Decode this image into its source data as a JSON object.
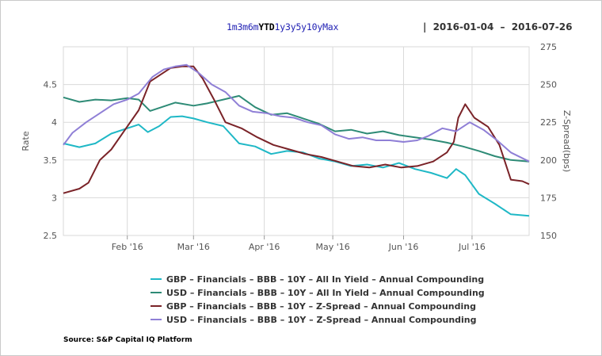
{
  "toolbar": {
    "ranges": [
      "1m",
      "3m",
      "6m",
      "YTD",
      "1y",
      "3y",
      "5y",
      "10y",
      "Max"
    ],
    "active_range": "YTD",
    "separator": "|",
    "date_from": "2016-01-04",
    "date_dash": "–",
    "date_to": "2016-07-26"
  },
  "source": "Source: S&P Capital IQ Platform",
  "colors": {
    "gbp_yield": "#1fb8c6",
    "usd_yield": "#2e8b76",
    "gbp_spread": "#7a2328",
    "usd_spread": "#8f7fd6",
    "grid": "#d9d9d9"
  },
  "chart_data": {
    "type": "line",
    "x_type": "date",
    "x_ticks": [
      {
        "date": "2016-02-01",
        "label": "Feb '16"
      },
      {
        "date": "2016-03-01",
        "label": "Mar '16"
      },
      {
        "date": "2016-04-01",
        "label": "Apr '16"
      },
      {
        "date": "2016-05-01",
        "label": "May '16"
      },
      {
        "date": "2016-06-01",
        "label": "Jun '16"
      },
      {
        "date": "2016-07-01",
        "label": "Jul '16"
      }
    ],
    "xlim": [
      "2016-01-04",
      "2016-07-26"
    ],
    "left_axis": {
      "label": "Rate",
      "ylim": [
        2.5,
        5.0
      ],
      "ticks": [
        "2.5",
        "3",
        "3.5",
        "4",
        "4.5"
      ]
    },
    "right_axis": {
      "label": "Z-Spread(bps)",
      "ylim": [
        150,
        275
      ],
      "ticks": [
        "150",
        "175",
        "200",
        "225",
        "250",
        "275"
      ]
    },
    "grid": true,
    "legend_position": "bottom",
    "series": [
      {
        "name": "GBP – Financials – BBB – 10Y – All In Yield – Annual Compounding",
        "axis": "left",
        "color_key": "gbp_yield",
        "points": [
          [
            "2016-01-04",
            3.72
          ],
          [
            "2016-01-11",
            3.67
          ],
          [
            "2016-01-18",
            3.72
          ],
          [
            "2016-01-25",
            3.85
          ],
          [
            "2016-02-01",
            3.92
          ],
          [
            "2016-02-06",
            3.97
          ],
          [
            "2016-02-10",
            3.87
          ],
          [
            "2016-02-15",
            3.95
          ],
          [
            "2016-02-20",
            4.07
          ],
          [
            "2016-02-25",
            4.08
          ],
          [
            "2016-03-01",
            4.05
          ],
          [
            "2016-03-07",
            4.0
          ],
          [
            "2016-03-14",
            3.95
          ],
          [
            "2016-03-21",
            3.72
          ],
          [
            "2016-03-28",
            3.68
          ],
          [
            "2016-04-04",
            3.58
          ],
          [
            "2016-04-11",
            3.62
          ],
          [
            "2016-04-18",
            3.6
          ],
          [
            "2016-04-25",
            3.52
          ],
          [
            "2016-05-02",
            3.48
          ],
          [
            "2016-05-09",
            3.42
          ],
          [
            "2016-05-16",
            3.44
          ],
          [
            "2016-05-23",
            3.4
          ],
          [
            "2016-05-30",
            3.46
          ],
          [
            "2016-06-06",
            3.38
          ],
          [
            "2016-06-13",
            3.33
          ],
          [
            "2016-06-20",
            3.26
          ],
          [
            "2016-06-24",
            3.38
          ],
          [
            "2016-06-28",
            3.3
          ],
          [
            "2016-07-04",
            3.05
          ],
          [
            "2016-07-11",
            2.92
          ],
          [
            "2016-07-18",
            2.78
          ],
          [
            "2016-07-26",
            2.76
          ]
        ]
      },
      {
        "name": "USD – Financials – BBB – 10Y – All In Yield – Annual Compounding",
        "axis": "left",
        "color_key": "usd_yield",
        "points": [
          [
            "2016-01-04",
            4.33
          ],
          [
            "2016-01-11",
            4.27
          ],
          [
            "2016-01-18",
            4.3
          ],
          [
            "2016-01-25",
            4.29
          ],
          [
            "2016-02-01",
            4.32
          ],
          [
            "2016-02-06",
            4.3
          ],
          [
            "2016-02-11",
            4.15
          ],
          [
            "2016-02-16",
            4.2
          ],
          [
            "2016-02-22",
            4.26
          ],
          [
            "2016-03-01",
            4.22
          ],
          [
            "2016-03-07",
            4.25
          ],
          [
            "2016-03-14",
            4.3
          ],
          [
            "2016-03-21",
            4.35
          ],
          [
            "2016-03-28",
            4.2
          ],
          [
            "2016-04-04",
            4.1
          ],
          [
            "2016-04-11",
            4.12
          ],
          [
            "2016-04-18",
            4.05
          ],
          [
            "2016-04-25",
            3.98
          ],
          [
            "2016-05-02",
            3.88
          ],
          [
            "2016-05-09",
            3.9
          ],
          [
            "2016-05-16",
            3.85
          ],
          [
            "2016-05-23",
            3.88
          ],
          [
            "2016-05-30",
            3.83
          ],
          [
            "2016-06-06",
            3.8
          ],
          [
            "2016-06-13",
            3.77
          ],
          [
            "2016-06-20",
            3.73
          ],
          [
            "2016-06-27",
            3.68
          ],
          [
            "2016-07-04",
            3.62
          ],
          [
            "2016-07-11",
            3.55
          ],
          [
            "2016-07-18",
            3.5
          ],
          [
            "2016-07-26",
            3.48
          ]
        ]
      },
      {
        "name": "GBP – Financials – BBB – 10Y – Z-Spread – Annual Compounding",
        "axis": "right",
        "color_key": "gbp_spread",
        "points": [
          [
            "2016-01-04",
            178
          ],
          [
            "2016-01-11",
            181
          ],
          [
            "2016-01-15",
            185
          ],
          [
            "2016-01-20",
            200
          ],
          [
            "2016-01-25",
            207
          ],
          [
            "2016-01-31",
            220
          ],
          [
            "2016-02-06",
            233
          ],
          [
            "2016-02-11",
            252
          ],
          [
            "2016-02-16",
            257
          ],
          [
            "2016-02-20",
            261
          ],
          [
            "2016-02-25",
            262
          ],
          [
            "2016-03-01",
            262
          ],
          [
            "2016-03-05",
            254
          ],
          [
            "2016-03-10",
            240
          ],
          [
            "2016-03-15",
            225
          ],
          [
            "2016-03-22",
            221
          ],
          [
            "2016-03-29",
            215
          ],
          [
            "2016-04-05",
            210
          ],
          [
            "2016-04-12",
            207
          ],
          [
            "2016-04-19",
            204
          ],
          [
            "2016-04-26",
            202
          ],
          [
            "2016-05-03",
            199
          ],
          [
            "2016-05-10",
            196
          ],
          [
            "2016-05-17",
            195
          ],
          [
            "2016-05-24",
            197
          ],
          [
            "2016-05-31",
            195
          ],
          [
            "2016-06-07",
            196
          ],
          [
            "2016-06-14",
            199
          ],
          [
            "2016-06-20",
            205
          ],
          [
            "2016-06-23",
            212
          ],
          [
            "2016-06-25",
            228
          ],
          [
            "2016-06-28",
            237
          ],
          [
            "2016-07-02",
            228
          ],
          [
            "2016-07-08",
            222
          ],
          [
            "2016-07-13",
            210
          ],
          [
            "2016-07-18",
            187
          ],
          [
            "2016-07-23",
            186
          ],
          [
            "2016-07-26",
            184
          ]
        ]
      },
      {
        "name": "USD – Financials – BBB – 10Y – Z-Spread – Annual Compounding",
        "axis": "right",
        "color_key": "usd_spread",
        "points": [
          [
            "2016-01-04",
            210
          ],
          [
            "2016-01-08",
            218
          ],
          [
            "2016-01-14",
            225
          ],
          [
            "2016-01-20",
            231
          ],
          [
            "2016-01-26",
            237
          ],
          [
            "2016-02-01",
            240
          ],
          [
            "2016-02-06",
            244
          ],
          [
            "2016-02-12",
            255
          ],
          [
            "2016-02-17",
            260
          ],
          [
            "2016-02-22",
            262
          ],
          [
            "2016-02-27",
            263
          ],
          [
            "2016-03-03",
            258
          ],
          [
            "2016-03-09",
            250
          ],
          [
            "2016-03-15",
            245
          ],
          [
            "2016-03-21",
            236
          ],
          [
            "2016-03-27",
            232
          ],
          [
            "2016-04-02",
            231
          ],
          [
            "2016-04-08",
            229
          ],
          [
            "2016-04-14",
            228
          ],
          [
            "2016-04-20",
            225
          ],
          [
            "2016-04-26",
            223
          ],
          [
            "2016-05-02",
            217
          ],
          [
            "2016-05-08",
            214
          ],
          [
            "2016-05-14",
            215
          ],
          [
            "2016-05-20",
            213
          ],
          [
            "2016-05-26",
            213
          ],
          [
            "2016-06-01",
            212
          ],
          [
            "2016-06-07",
            213
          ],
          [
            "2016-06-12",
            216
          ],
          [
            "2016-06-18",
            221
          ],
          [
            "2016-06-24",
            219
          ],
          [
            "2016-06-30",
            225
          ],
          [
            "2016-07-06",
            220
          ],
          [
            "2016-07-12",
            213
          ],
          [
            "2016-07-18",
            205
          ],
          [
            "2016-07-26",
            199
          ]
        ]
      }
    ]
  }
}
